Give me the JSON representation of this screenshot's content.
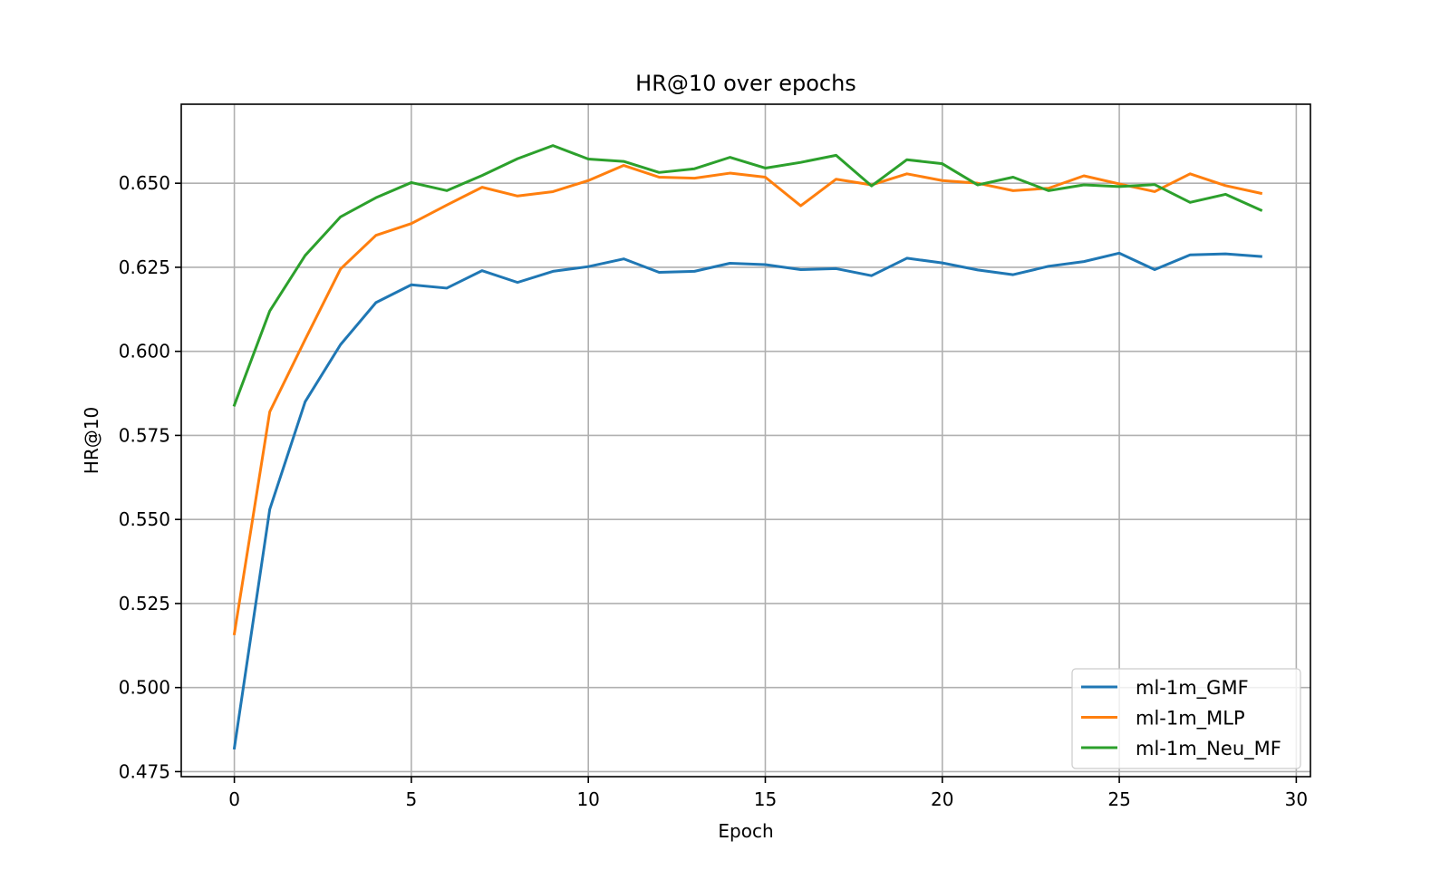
{
  "chart_data": {
    "type": "line",
    "title": "HR@10 over epochs",
    "xlabel": "Epoch",
    "ylabel": "HR@10",
    "xlim": [
      -1.5,
      30.4
    ],
    "ylim": [
      0.4735,
      0.6735
    ],
    "xticks": [
      0,
      5,
      10,
      15,
      20,
      25,
      30
    ],
    "xtick_labels": [
      "0",
      "5",
      "10",
      "15",
      "20",
      "25",
      "30"
    ],
    "yticks": [
      0.475,
      0.5,
      0.525,
      0.55,
      0.575,
      0.6,
      0.625,
      0.65
    ],
    "ytick_labels": [
      "0.475",
      "0.500",
      "0.525",
      "0.550",
      "0.575",
      "0.600",
      "0.625",
      "0.650"
    ],
    "grid": true,
    "legend_position": "lower-right",
    "x": [
      0,
      1,
      2,
      3,
      4,
      5,
      6,
      7,
      8,
      9,
      10,
      11,
      12,
      13,
      14,
      15,
      16,
      17,
      18,
      19,
      20,
      21,
      22,
      23,
      24,
      25,
      26,
      27,
      28,
      29
    ],
    "series": [
      {
        "name": "ml-1m_GMF",
        "color": "#1f77b4",
        "values": [
          0.482,
          0.553,
          0.585,
          0.602,
          0.6145,
          0.6198,
          0.6188,
          0.624,
          0.6205,
          0.6238,
          0.6252,
          0.6275,
          0.6235,
          0.6238,
          0.6262,
          0.6258,
          0.6243,
          0.6246,
          0.6225,
          0.6277,
          0.6263,
          0.6242,
          0.6228,
          0.6253,
          0.6267,
          0.6292,
          0.6243,
          0.6287,
          0.629,
          0.6282
        ]
      },
      {
        "name": "ml-1m_MLP",
        "color": "#ff7f0e",
        "values": [
          0.516,
          0.582,
          0.6035,
          0.6245,
          0.6345,
          0.638,
          0.6435,
          0.6488,
          0.6462,
          0.6475,
          0.6508,
          0.6553,
          0.6518,
          0.6515,
          0.653,
          0.6518,
          0.6433,
          0.6512,
          0.6495,
          0.6528,
          0.6508,
          0.65,
          0.6478,
          0.6485,
          0.6522,
          0.6498,
          0.6475,
          0.6528,
          0.6493,
          0.647
        ]
      },
      {
        "name": "ml-1m_Neu_MF",
        "color": "#2ca02c",
        "values": [
          0.584,
          0.612,
          0.6285,
          0.64,
          0.6457,
          0.6502,
          0.6478,
          0.6523,
          0.6573,
          0.6612,
          0.6572,
          0.6565,
          0.6532,
          0.6543,
          0.6577,
          0.6545,
          0.6562,
          0.6583,
          0.6492,
          0.657,
          0.6558,
          0.6495,
          0.6518,
          0.6478,
          0.6495,
          0.649,
          0.6496,
          0.6443,
          0.6467,
          0.642
        ]
      }
    ]
  }
}
